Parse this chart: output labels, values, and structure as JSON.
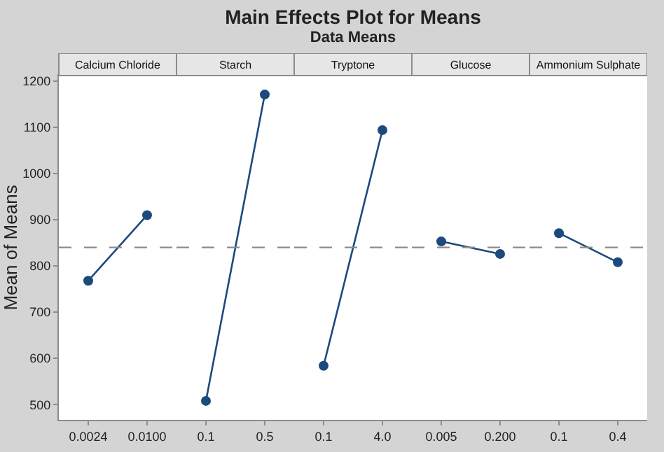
{
  "chart_data": [
    {
      "type": "other",
      "title": "Main Effects Plot for Means",
      "subtitle": "Data Means"
    },
    {
      "type": "line",
      "title": "Calcium Chloride",
      "ylabel": "Mean of Means",
      "categories": [
        "0.0024",
        "0.0100"
      ],
      "values": [
        768,
        910
      ],
      "color": "#1c4a7c",
      "ylim": [
        467,
        1212
      ],
      "yticks": [
        500,
        600,
        700,
        800,
        900,
        1000,
        1100,
        1200
      ],
      "marker": "circle",
      "line_style": "solid",
      "grid": false,
      "legend": false,
      "ref_lines": [
        {
          "axis": "y",
          "value": 840,
          "color": "#8c8c8c",
          "line_style": "dashed"
        }
      ]
    },
    {
      "type": "line",
      "title": "Starch",
      "categories": [
        "0.1",
        "0.5"
      ],
      "values": [
        508,
        1171
      ],
      "color": "#1c4a7c",
      "ylim": [
        467,
        1212
      ],
      "tick_labels": "x",
      "marker": "circle",
      "line_style": "solid",
      "grid": false,
      "legend": false,
      "ref_lines": [
        {
          "axis": "y",
          "value": 840,
          "color": "#8c8c8c",
          "line_style": "dashed"
        }
      ]
    },
    {
      "type": "line",
      "title": "Tryptone",
      "categories": [
        "0.1",
        "4.0"
      ],
      "values": [
        584,
        1094
      ],
      "color": "#1c4a7c",
      "ylim": [
        467,
        1212
      ],
      "tick_labels": "x",
      "marker": "circle",
      "line_style": "solid",
      "grid": false,
      "legend": false,
      "ref_lines": [
        {
          "axis": "y",
          "value": 840,
          "color": "#8c8c8c",
          "line_style": "dashed"
        }
      ]
    },
    {
      "type": "line",
      "title": "Glucose",
      "categories": [
        "0.005",
        "0.200"
      ],
      "values": [
        853,
        826
      ],
      "color": "#1c4a7c",
      "ylim": [
        467,
        1212
      ],
      "tick_labels": "x",
      "marker": "circle",
      "line_style": "solid",
      "grid": false,
      "legend": false,
      "ref_lines": [
        {
          "axis": "y",
          "value": 840,
          "color": "#8c8c8c",
          "line_style": "dashed"
        }
      ]
    },
    {
      "type": "line",
      "title": "Ammonium Sulphate",
      "categories": [
        "0.1",
        "0.4"
      ],
      "values": [
        871,
        808
      ],
      "color": "#1c4a7c",
      "ylim": [
        467,
        1212
      ],
      "tick_labels": "x",
      "marker": "circle",
      "line_style": "solid",
      "grid": false,
      "legend": false,
      "ref_lines": [
        {
          "axis": "y",
          "value": 840,
          "color": "#8c8c8c",
          "line_style": "dashed"
        }
      ]
    }
  ]
}
